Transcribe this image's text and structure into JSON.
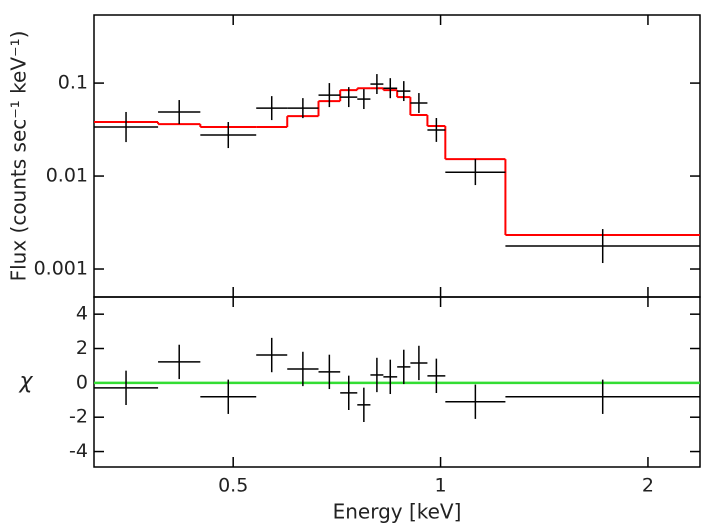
{
  "chart_data": [
    {
      "type": "spectrum",
      "ylabel": "Flux (counts sec⁻¹ keV⁻¹)",
      "log_y": true,
      "ylim": [
        0.0005,
        0.54
      ],
      "yticks": [
        0.1,
        0.01,
        0.001
      ],
      "bins": [
        0.314,
        0.389,
        0.448,
        0.54,
        0.599,
        0.665,
        0.715,
        0.757,
        0.791,
        0.826,
        0.865,
        0.904,
        0.957,
        1.016,
        1.242,
        2.38
      ],
      "flux": [
        0.0337,
        0.0488,
        0.0276,
        0.0538,
        0.0538,
        0.0743,
        0.0707,
        0.0673,
        0.0976,
        0.088,
        0.082,
        0.061,
        0.0313,
        0.011,
        0.00177
      ],
      "flux_lo": [
        0.0232,
        0.0363,
        0.02,
        0.04,
        0.042,
        0.0552,
        0.0552,
        0.0526,
        0.0763,
        0.0688,
        0.0641,
        0.0477,
        0.0233,
        0.008,
        0.00116
      ],
      "flux_hi": [
        0.0489,
        0.0657,
        0.0381,
        0.0724,
        0.0689,
        0.1,
        0.0905,
        0.0861,
        0.125,
        0.113,
        0.105,
        0.0781,
        0.0421,
        0.0152,
        0.00269
      ],
      "color": "#000000",
      "model": [
        0.0381,
        0.0362,
        0.0337,
        0.0337,
        0.0441,
        0.064,
        0.084,
        0.088,
        0.088,
        0.084,
        0.0707,
        0.0453,
        0.0345,
        0.0152,
        0.00232
      ],
      "model_color": "#ff0000"
    },
    {
      "type": "residual",
      "ylabel": "χ",
      "xlabel": "Energy [keV]",
      "log_x": true,
      "xlim": [
        0.314,
        2.38
      ],
      "xticks": [
        0.5,
        1,
        2
      ],
      "ylim": [
        -4.9,
        5
      ],
      "yticks": [
        4,
        2,
        0,
        -2,
        -4
      ],
      "residuals": [
        -0.29,
        1.22,
        -0.81,
        1.62,
        0.81,
        0.64,
        -0.58,
        -1.28,
        0.46,
        0.35,
        0.93,
        1.16,
        0.41,
        -1.1,
        -0.81
      ],
      "residual_err": [
        1,
        1,
        1,
        1,
        1,
        1,
        1,
        1,
        1,
        1,
        1,
        1,
        1,
        1,
        1
      ],
      "color": "#000000",
      "reference_line": 0,
      "reference_color": "#33dd33"
    }
  ]
}
